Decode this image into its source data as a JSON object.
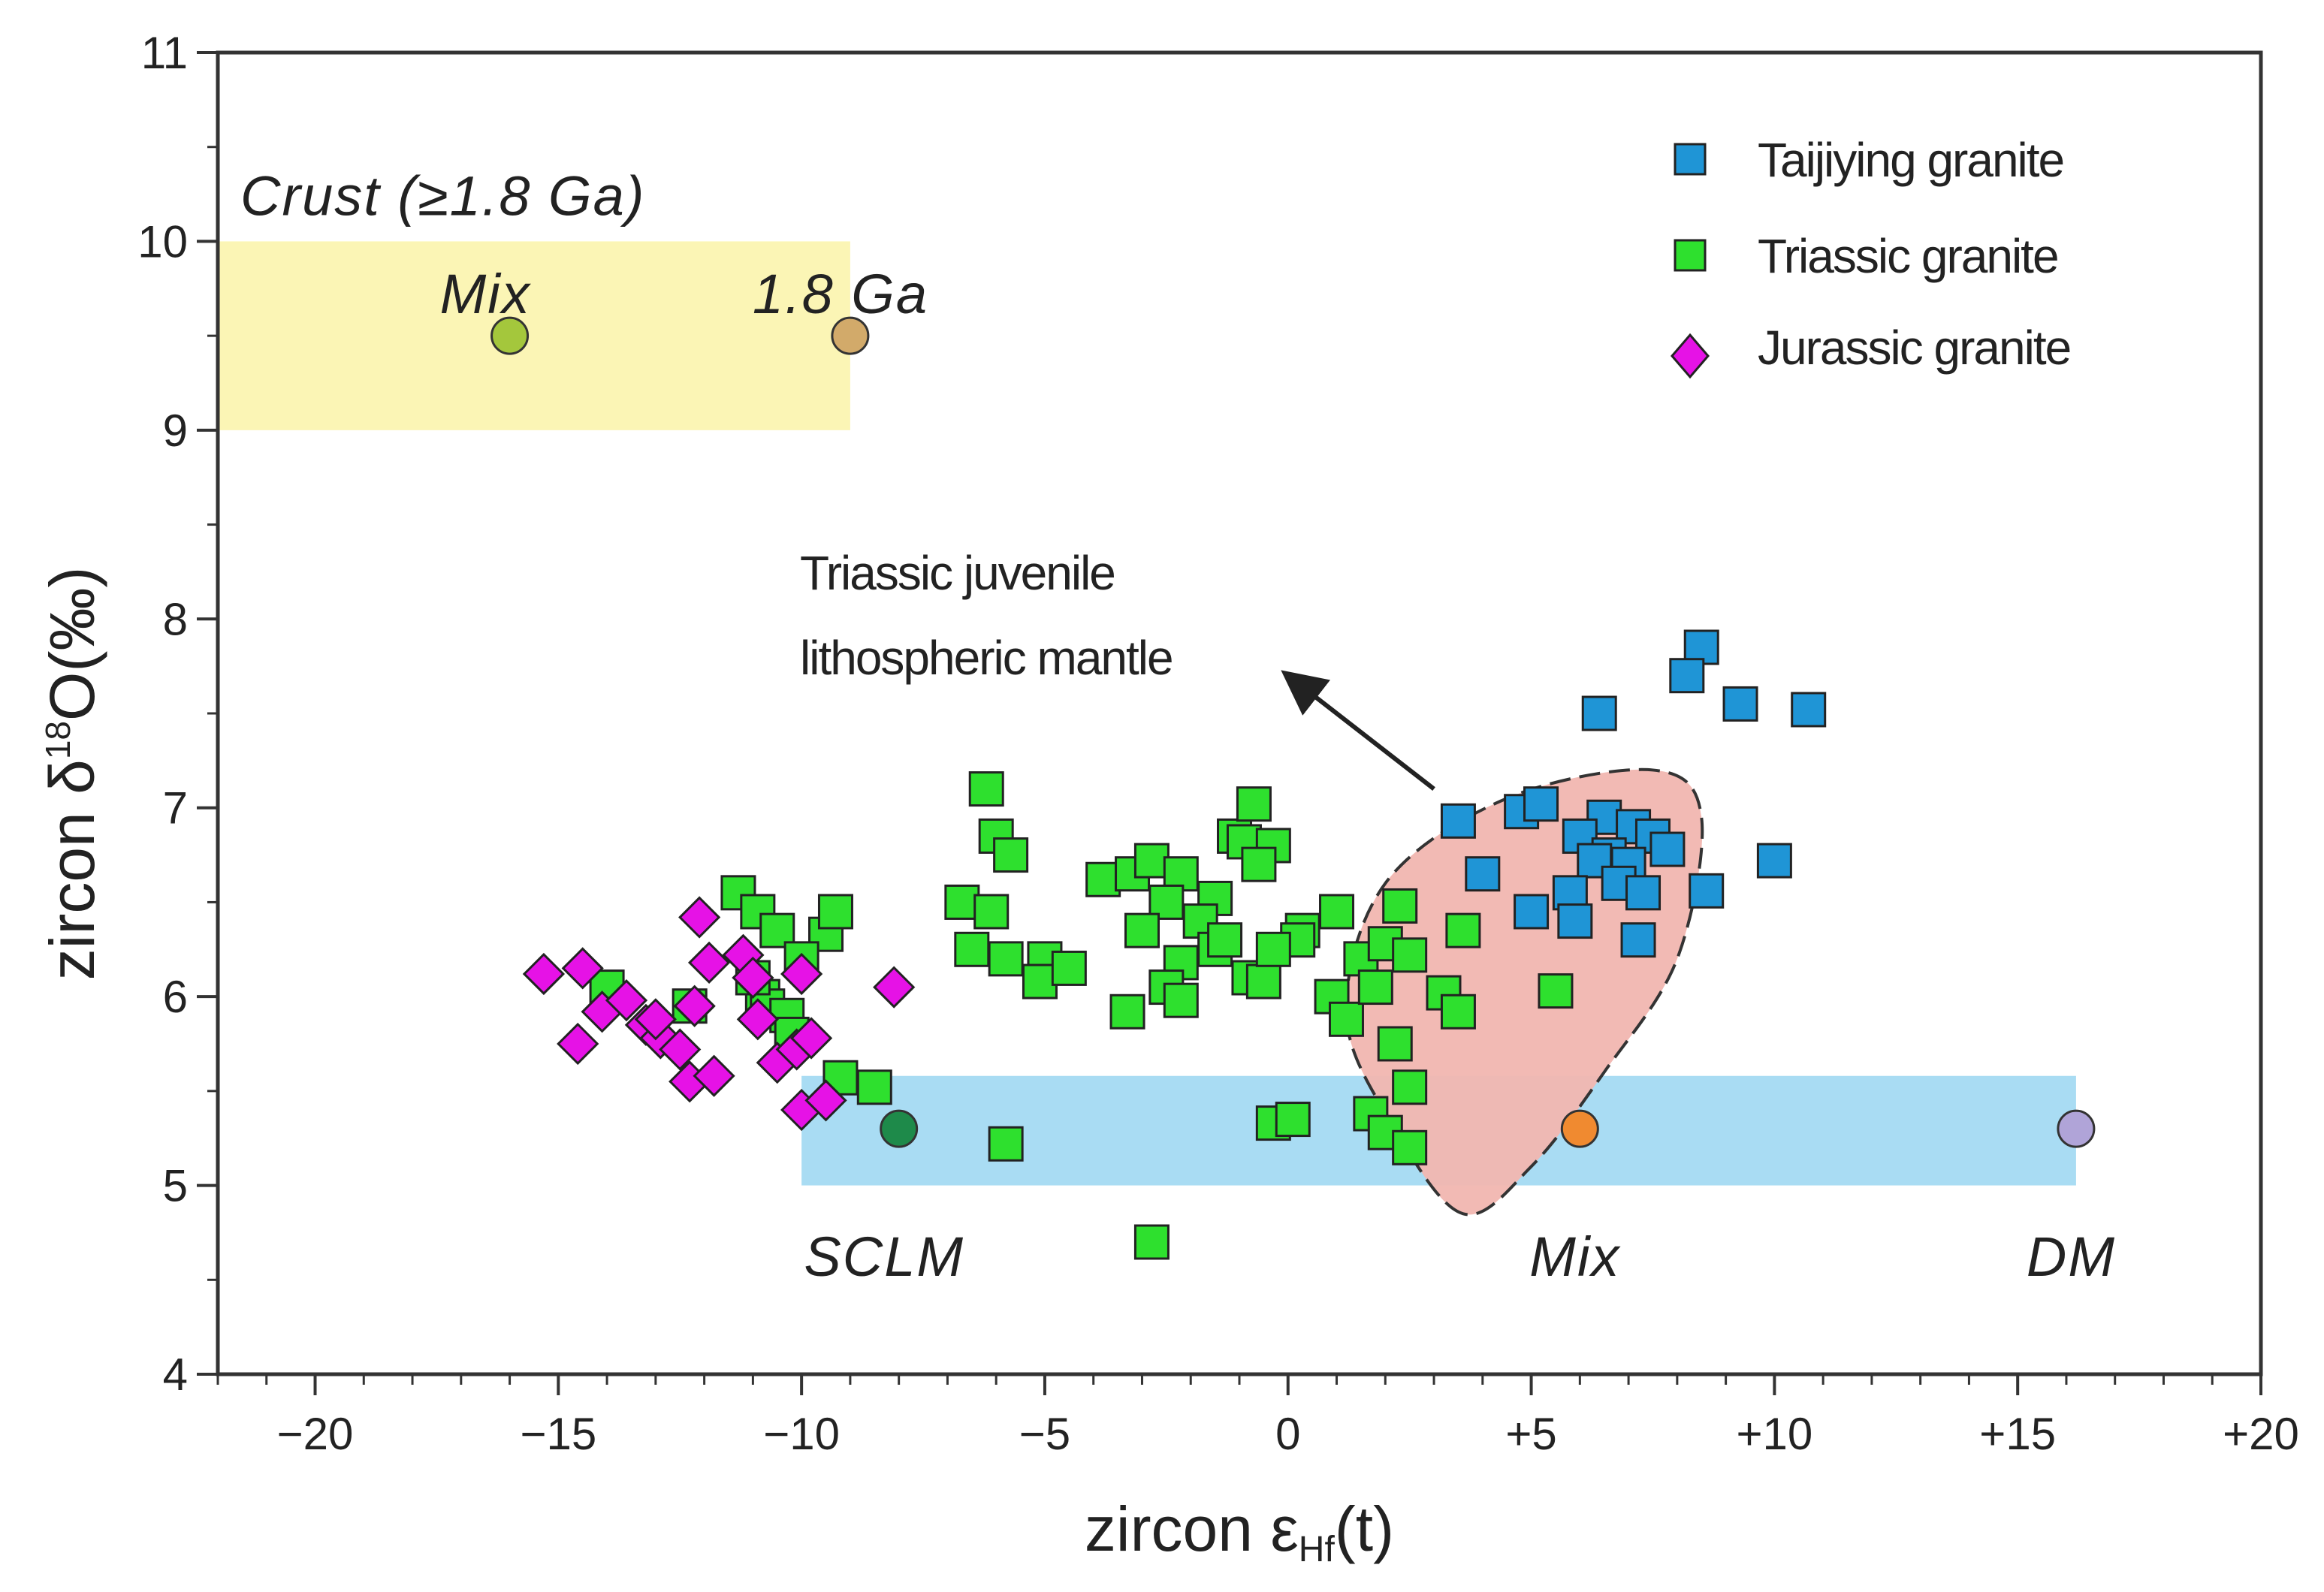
{
  "chart_data": {
    "type": "scatter",
    "xlabel": "zircon εHf(t)",
    "xlabel_parts": {
      "main": "zircon ε",
      "sub": "Hf",
      "tail": "(t)"
    },
    "ylabel": "zircon δ18O(‰)",
    "ylabel_parts": {
      "main": "zircon δ",
      "sup": "18",
      "tail": "O(‰)"
    },
    "xlim": [
      -22,
      20
    ],
    "ylim": [
      4,
      11
    ],
    "xticks": [
      {
        "value": -20,
        "label": "−20"
      },
      {
        "value": -15,
        "label": "−15"
      },
      {
        "value": -10,
        "label": "−10"
      },
      {
        "value": -5,
        "label": "−5"
      },
      {
        "value": 0,
        "label": "0"
      },
      {
        "value": 5,
        "label": "+5"
      },
      {
        "value": 10,
        "label": "+10"
      },
      {
        "value": 15,
        "label": "+15"
      },
      {
        "value": 20,
        "label": "+20"
      }
    ],
    "yticks": [
      {
        "value": 4,
        "label": "4"
      },
      {
        "value": 5,
        "label": "5"
      },
      {
        "value": 6,
        "label": "6"
      },
      {
        "value": 7,
        "label": "7"
      },
      {
        "value": 8,
        "label": "8"
      },
      {
        "value": 9,
        "label": "9"
      },
      {
        "value": 10,
        "label": "10"
      },
      {
        "value": 11,
        "label": "11"
      }
    ],
    "regions": [
      {
        "name": "Crust (≥1.8 Ga)",
        "x": [
          -22,
          -9
        ],
        "y": [
          9,
          10
        ],
        "color": "#fbf5b5",
        "label": "Crust (≥1.8 Ga)"
      },
      {
        "name": "Mantle band",
        "x": [
          -10,
          16.2
        ],
        "y": [
          5,
          5.58
        ],
        "color": "#a9dcf3",
        "label": ""
      }
    ],
    "ellipse_region": {
      "name": "Triassic juvenile lithospheric mantle",
      "color": "#f1b6b0",
      "stroke": "#333333"
    },
    "annotation": {
      "lines": [
        "Triassic juvenile",
        "lithospheric mantle"
      ],
      "arrow_from": [
        3,
        7.1
      ],
      "arrow_to": [
        0,
        7.7
      ]
    },
    "end_members": [
      {
        "label": "Mix",
        "x": -16,
        "y": 9.5,
        "color": "#a4c73c",
        "label_x": -16.5,
        "label_y": 9.7
      },
      {
        "label": "1.8 Ga",
        "x": -9,
        "y": 9.5,
        "color": "#d2aa6a",
        "label_x": -9.2,
        "label_y": 9.7
      },
      {
        "label": "SCLM",
        "x": -8,
        "y": 5.3,
        "color": "#1e8a4a",
        "label_x": -8.3,
        "label_y": 4.6
      },
      {
        "label": "Mix",
        "x": 6,
        "y": 5.3,
        "color": "#f08a30",
        "label_x": 5.9,
        "label_y": 4.6
      },
      {
        "label": "DM",
        "x": 16.2,
        "y": 5.3,
        "color": "#b0a4d8",
        "label_x": 16.1,
        "label_y": 4.6
      }
    ],
    "legend": {
      "position": "top-right"
    },
    "series": [
      {
        "name": "Taijiying granite",
        "marker": "square",
        "color": "#1f95d6",
        "points": [
          [
            8.5,
            7.85
          ],
          [
            8.2,
            7.7
          ],
          [
            9.3,
            7.55
          ],
          [
            10.7,
            7.52
          ],
          [
            6.4,
            7.5
          ],
          [
            3.5,
            6.93
          ],
          [
            4.8,
            6.98
          ],
          [
            5.2,
            7.02
          ],
          [
            6.5,
            6.95
          ],
          [
            6.0,
            6.85
          ],
          [
            7.1,
            6.9
          ],
          [
            6.6,
            6.75
          ],
          [
            7.5,
            6.85
          ],
          [
            7.8,
            6.78
          ],
          [
            6.3,
            6.72
          ],
          [
            7.0,
            6.7
          ],
          [
            6.8,
            6.6
          ],
          [
            7.3,
            6.55
          ],
          [
            5.8,
            6.55
          ],
          [
            8.6,
            6.56
          ],
          [
            4.0,
            6.65
          ],
          [
            5.0,
            6.45
          ],
          [
            5.9,
            6.4
          ],
          [
            7.2,
            6.3
          ],
          [
            10.0,
            6.72
          ]
        ]
      },
      {
        "name": "Triassic granite",
        "marker": "square",
        "color": "#2ee02e",
        "points": [
          [
            -6.2,
            7.1
          ],
          [
            -6.0,
            6.85
          ],
          [
            -5.7,
            6.75
          ],
          [
            -6.7,
            6.5
          ],
          [
            -6.1,
            6.45
          ],
          [
            -6.5,
            6.25
          ],
          [
            -5.8,
            6.2
          ],
          [
            -5.0,
            6.2
          ],
          [
            -5.1,
            6.08
          ],
          [
            -4.5,
            6.15
          ],
          [
            -3.8,
            6.62
          ],
          [
            -3.2,
            6.65
          ],
          [
            -2.8,
            6.72
          ],
          [
            -2.2,
            6.65
          ],
          [
            -2.5,
            6.5
          ],
          [
            -3.0,
            6.35
          ],
          [
            -1.5,
            6.52
          ],
          [
            -1.8,
            6.4
          ],
          [
            -2.2,
            6.18
          ],
          [
            -1.5,
            6.25
          ],
          [
            -2.5,
            6.05
          ],
          [
            -2.2,
            5.98
          ],
          [
            -1.1,
            6.85
          ],
          [
            -0.9,
            6.82
          ],
          [
            -0.7,
            7.02
          ],
          [
            -0.3,
            6.8
          ],
          [
            -0.6,
            6.7
          ],
          [
            -1.3,
            6.3
          ],
          [
            -0.8,
            6.1
          ],
          [
            -0.5,
            6.08
          ],
          [
            0.3,
            6.35
          ],
          [
            0.2,
            6.3
          ],
          [
            -0.3,
            6.25
          ],
          [
            1.0,
            6.45
          ],
          [
            0.9,
            6.0
          ],
          [
            1.5,
            6.2
          ],
          [
            1.2,
            5.88
          ],
          [
            1.8,
            6.05
          ],
          [
            2.0,
            6.28
          ],
          [
            2.3,
            6.48
          ],
          [
            2.5,
            6.22
          ],
          [
            3.2,
            6.02
          ],
          [
            3.5,
            5.92
          ],
          [
            3.6,
            6.35
          ],
          [
            5.5,
            6.03
          ],
          [
            2.2,
            5.75
          ],
          [
            1.7,
            5.38
          ],
          [
            2.5,
            5.52
          ],
          [
            2.0,
            5.28
          ],
          [
            2.5,
            5.2
          ],
          [
            -0.3,
            5.33
          ],
          [
            0.1,
            5.35
          ],
          [
            -3.3,
            5.92
          ],
          [
            -5.8,
            5.22
          ],
          [
            -2.8,
            4.7
          ],
          [
            -8.5,
            5.52
          ],
          [
            -9.2,
            5.57
          ],
          [
            -9.5,
            6.33
          ],
          [
            -9.3,
            6.45
          ],
          [
            -10.8,
            6.0
          ],
          [
            -11.3,
            6.55
          ],
          [
            -10.9,
            6.45
          ],
          [
            -10.5,
            6.35
          ],
          [
            -10.7,
            5.95
          ],
          [
            -10.3,
            5.9
          ],
          [
            -11.0,
            6.1
          ],
          [
            -14.0,
            6.05
          ],
          [
            -12.3,
            5.95
          ],
          [
            -10.0,
            6.2
          ],
          [
            -10.2,
            5.8
          ]
        ]
      },
      {
        "name": "Jurassic granite",
        "marker": "diamond",
        "color": "#e612e6",
        "points": [
          [
            -15.3,
            6.12
          ],
          [
            -14.5,
            6.15
          ],
          [
            -14.1,
            5.92
          ],
          [
            -13.6,
            5.98
          ],
          [
            -13.2,
            5.85
          ],
          [
            -12.9,
            5.78
          ],
          [
            -12.5,
            5.72
          ],
          [
            -12.2,
            5.95
          ],
          [
            -11.9,
            6.18
          ],
          [
            -12.1,
            6.42
          ],
          [
            -11.2,
            6.22
          ],
          [
            -11.0,
            6.1
          ],
          [
            -10.9,
            5.88
          ],
          [
            -10.5,
            5.65
          ],
          [
            -10.1,
            5.72
          ],
          [
            -9.8,
            5.78
          ],
          [
            -10.0,
            5.4
          ],
          [
            -9.5,
            5.45
          ],
          [
            -10.0,
            6.12
          ],
          [
            -8.1,
            6.05
          ],
          [
            -14.6,
            5.75
          ],
          [
            -12.3,
            5.55
          ],
          [
            -11.8,
            5.58
          ],
          [
            -13.0,
            5.88
          ]
        ]
      }
    ]
  }
}
